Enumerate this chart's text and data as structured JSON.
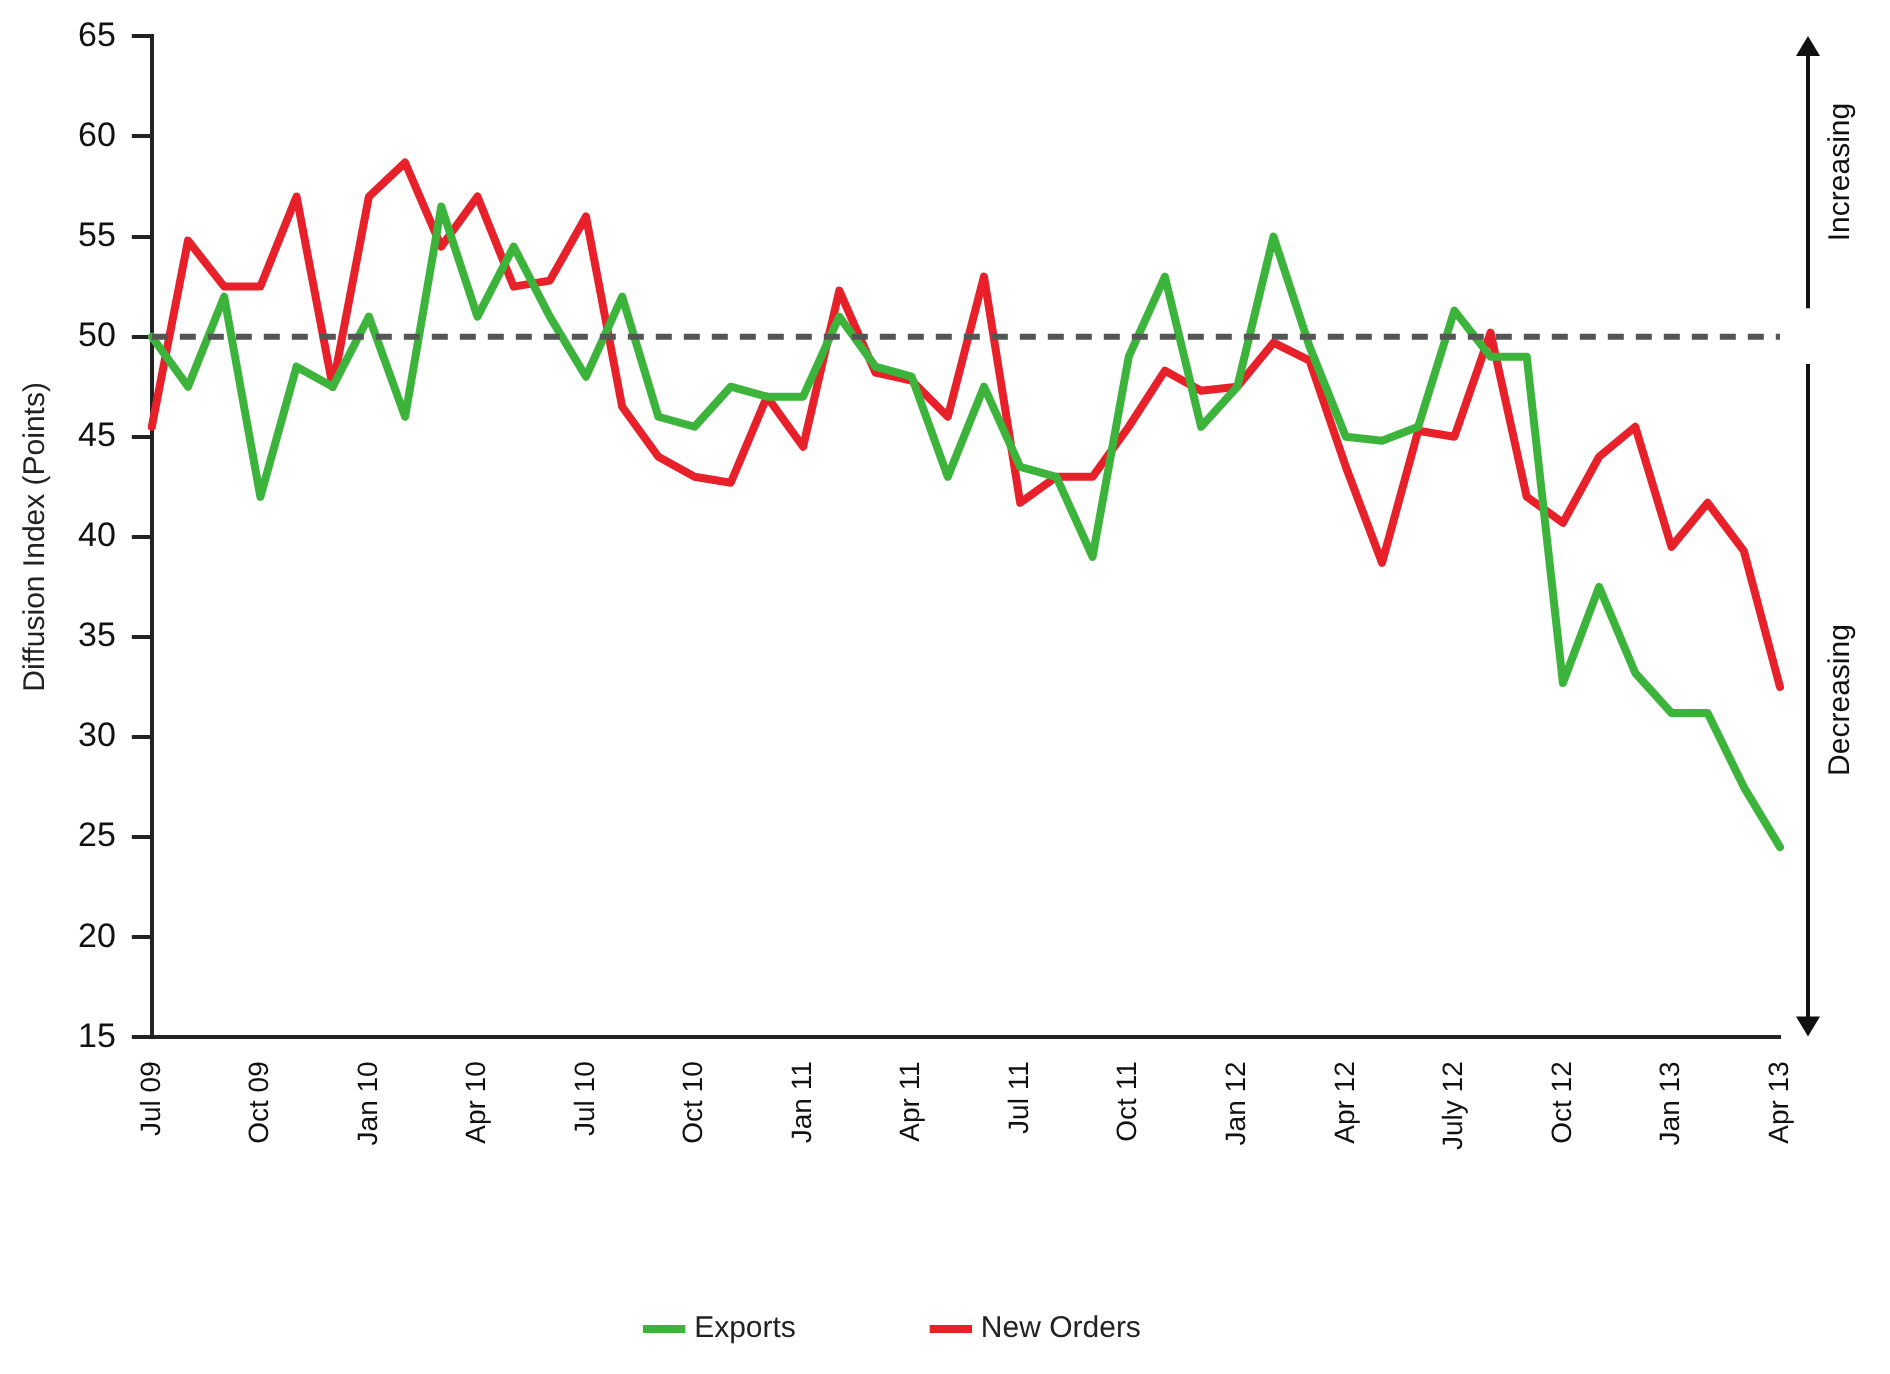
{
  "chart_data": {
    "type": "line",
    "ylabel": "Diffusion Index (Points)",
    "categories": [
      "Jul 09",
      null,
      null,
      "Oct 09",
      null,
      null,
      "Jan 10",
      null,
      null,
      "Apr 10",
      null,
      null,
      "Jul 10",
      null,
      null,
      "Oct 10",
      null,
      null,
      "Jan 11",
      null,
      null,
      "Apr 11",
      null,
      null,
      "Jul 11",
      null,
      null,
      "Oct 11",
      null,
      null,
      "Jan 12",
      null,
      null,
      "Apr 12",
      null,
      null,
      "July 12",
      null,
      null,
      "Oct 12",
      null,
      null,
      "Jan 13",
      null,
      null,
      "Apr 13"
    ],
    "series": [
      {
        "name": "Exports",
        "color": "#3cb43c",
        "values": [
          50,
          47.5,
          52,
          42,
          48.5,
          47.5,
          51,
          46,
          56.5,
          51,
          54.5,
          51,
          48,
          52,
          46,
          45.5,
          47.5,
          47,
          47,
          51,
          48.5,
          48,
          43,
          47.5,
          43.5,
          43,
          39,
          49,
          53,
          45.5,
          47.5,
          55,
          49.5,
          45,
          44.8,
          45.5,
          51.3,
          49,
          49,
          32.7,
          37.5,
          33.2,
          31.2,
          31.2,
          27.5,
          24.5
        ]
      },
      {
        "name": "New Orders",
        "color": "#e8202a",
        "values": [
          45.5,
          54.8,
          52.5,
          52.5,
          57,
          47.5,
          57,
          58.7,
          54.5,
          57,
          52.5,
          52.8,
          56,
          46.5,
          44,
          43,
          42.7,
          47,
          44.5,
          52.3,
          48.2,
          47.8,
          46,
          53,
          41.7,
          43,
          43,
          45.5,
          48.3,
          47.3,
          47.5,
          49.7,
          48.8,
          43.5,
          38.7,
          45.3,
          45,
          50.2,
          42,
          40.7,
          44,
          45.5,
          39.5,
          41.7,
          39.3,
          32.5
        ]
      }
    ],
    "ylim": [
      15,
      65
    ],
    "yticks": [
      15,
      20,
      25,
      30,
      35,
      40,
      45,
      50,
      55,
      60,
      65
    ],
    "ref_lines": [
      {
        "axis": "y",
        "value": 50,
        "color": "#555555",
        "line_style": "dashed"
      }
    ],
    "annotations": [
      "Increasing",
      "Decreasing"
    ],
    "grid": false,
    "legend": "bottom",
    "marker": "none",
    "line_style": "solid"
  }
}
